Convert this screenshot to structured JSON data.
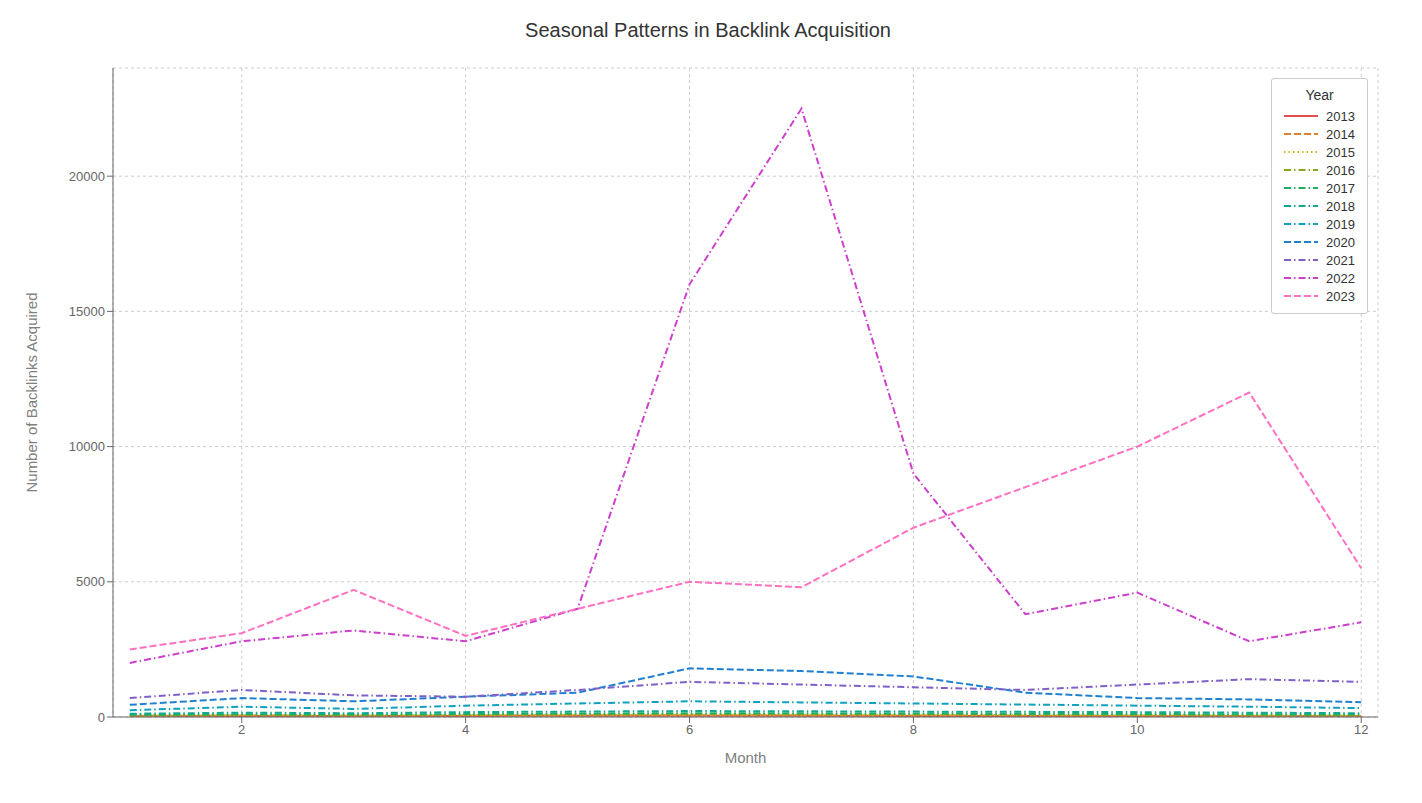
{
  "chart_data": {
    "type": "line",
    "title": "Seasonal Patterns in Backlink Acquisition",
    "xlabel": "Month",
    "ylabel": "Number of Backlinks Acquired",
    "x": [
      1,
      2,
      3,
      4,
      5,
      6,
      7,
      8,
      9,
      10,
      11,
      12
    ],
    "series": [
      {
        "name": "2013",
        "color": "#e05050",
        "line_style": "solid",
        "values": [
          30,
          40,
          35,
          40,
          45,
          50,
          45,
          40,
          35,
          30,
          30,
          25
        ]
      },
      {
        "name": "2014",
        "color": "#e08030",
        "line_style": "dashed",
        "values": [
          40,
          55,
          45,
          55,
          60,
          65,
          60,
          55,
          50,
          45,
          40,
          35
        ]
      },
      {
        "name": "2015",
        "color": "#c8b820",
        "line_style": "dotted",
        "values": [
          50,
          65,
          55,
          70,
          80,
          85,
          80,
          75,
          70,
          65,
          55,
          50
        ]
      },
      {
        "name": "2016",
        "color": "#88a820",
        "line_style": "dashdot",
        "values": [
          60,
          80,
          70,
          90,
          100,
          110,
          105,
          100,
          95,
          85,
          75,
          65
        ]
      },
      {
        "name": "2017",
        "color": "#20b060",
        "line_style": "dashdot",
        "values": [
          80,
          100,
          90,
          110,
          130,
          140,
          135,
          130,
          120,
          110,
          100,
          90
        ]
      },
      {
        "name": "2018",
        "color": "#10a890",
        "line_style": "dashdot",
        "values": [
          120,
          160,
          140,
          180,
          200,
          220,
          210,
          200,
          190,
          180,
          160,
          140
        ]
      },
      {
        "name": "2019",
        "color": "#10a0c0",
        "line_style": "dashdot",
        "values": [
          250,
          380,
          300,
          420,
          500,
          580,
          540,
          500,
          460,
          420,
          380,
          330
        ]
      },
      {
        "name": "2020",
        "color": "#2080d0",
        "line_style": "dashed",
        "values": [
          450,
          700,
          580,
          750,
          900,
          1800,
          1700,
          1500,
          900,
          700,
          650,
          550
        ]
      },
      {
        "name": "2021",
        "color": "#8060c8",
        "line_style": "dashdot",
        "values": [
          700,
          1000,
          800,
          750,
          1000,
          1300,
          1200,
          1100,
          1000,
          1200,
          1400,
          1300
        ]
      },
      {
        "name": "2022",
        "color": "#cc40cc",
        "line_style": "dashdot",
        "values": [
          2000,
          2800,
          3200,
          2800,
          4000,
          16000,
          22500,
          9000,
          3800,
          4600,
          2800,
          3500
        ]
      },
      {
        "name": "2023",
        "color": "#ff70c0",
        "line_style": "dashed",
        "values": [
          2500,
          3100,
          4700,
          3000,
          4000,
          5000,
          4800,
          7000,
          8500,
          10000,
          12000,
          5500
        ]
      }
    ],
    "xlim": [
      0.85,
      12.15
    ],
    "ylim": [
      0,
      24000
    ],
    "xticks": [
      2,
      4,
      6,
      8,
      10,
      12
    ],
    "yticks": [
      0,
      5000,
      10000,
      15000,
      20000
    ],
    "grid": true,
    "legend": "upper right",
    "legend_title": "Year"
  }
}
